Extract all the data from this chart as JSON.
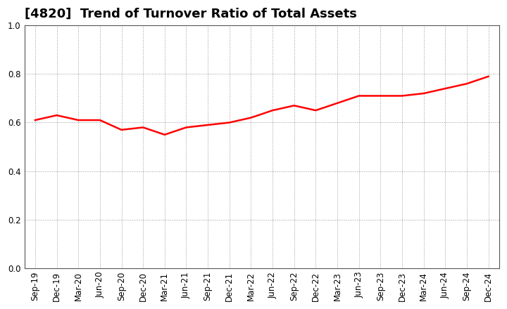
{
  "title": "[4820]  Trend of Turnover Ratio of Total Assets",
  "x_labels": [
    "Sep-19",
    "Dec-19",
    "Mar-20",
    "Jun-20",
    "Sep-20",
    "Dec-20",
    "Mar-21",
    "Jun-21",
    "Sep-21",
    "Dec-21",
    "Mar-22",
    "Jun-22",
    "Sep-22",
    "Dec-22",
    "Mar-23",
    "Jun-23",
    "Sep-23",
    "Dec-23",
    "Mar-24",
    "Jun-24",
    "Sep-24",
    "Dec-24"
  ],
  "y_values": [
    0.61,
    0.63,
    0.61,
    0.61,
    0.57,
    0.58,
    0.55,
    0.58,
    0.59,
    0.6,
    0.62,
    0.65,
    0.67,
    0.65,
    0.68,
    0.71,
    0.71,
    0.71,
    0.72,
    0.74,
    0.76,
    0.79
  ],
  "line_color": "#ff0000",
  "line_width": 1.8,
  "ylim": [
    0.0,
    1.0
  ],
  "yticks": [
    0.0,
    0.2,
    0.4,
    0.6,
    0.8,
    1.0
  ],
  "title_fontsize": 13,
  "tick_fontsize": 8.5,
  "background_color": "#ffffff",
  "grid_color": "#999999",
  "spine_color": "#555555"
}
